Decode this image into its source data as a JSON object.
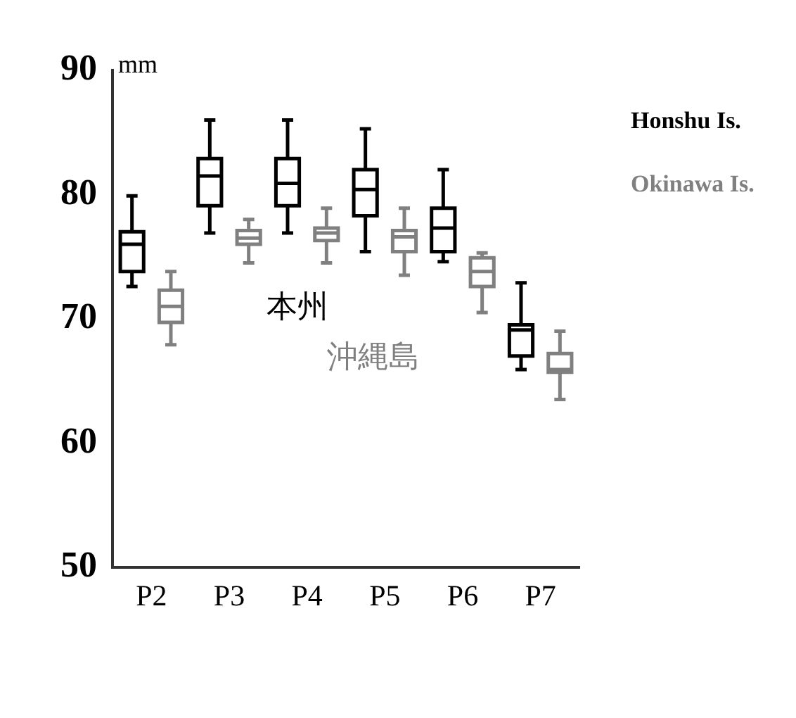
{
  "chart_data": {
    "type": "box",
    "ylabel": "mm",
    "categories": [
      "P2",
      "P3",
      "P4",
      "P5",
      "P6",
      "P7"
    ],
    "ylim": [
      50,
      90
    ],
    "yticks": [
      50,
      60,
      70,
      80,
      90
    ],
    "grid": false,
    "legend": "top right",
    "series": [
      {
        "name": "Honshu Is.",
        "color": "#000000",
        "boxes": [
          {
            "low": 72.6,
            "q1": 73.8,
            "median": 76.0,
            "q3": 77.0,
            "high": 79.9
          },
          {
            "low": 76.9,
            "q1": 79.1,
            "median": 81.5,
            "q3": 82.9,
            "high": 86.0
          },
          {
            "low": 76.9,
            "q1": 79.1,
            "median": 80.9,
            "q3": 82.9,
            "high": 86.0
          },
          {
            "low": 75.4,
            "q1": 78.3,
            "median": 80.4,
            "q3": 82.0,
            "high": 85.3
          },
          {
            "low": 74.6,
            "q1": 75.4,
            "median": 77.3,
            "q3": 78.9,
            "high": 82.0
          },
          {
            "low": 65.9,
            "q1": 67.0,
            "median": 69.1,
            "q3": 69.5,
            "high": 72.9
          }
        ]
      },
      {
        "name": "Okinawa Is.",
        "color": "#808080",
        "boxes": [
          {
            "low": 67.9,
            "q1": 69.7,
            "median": 71.0,
            "q3": 72.3,
            "high": 73.8
          },
          {
            "low": 74.5,
            "q1": 76.0,
            "median": 76.5,
            "q3": 77.1,
            "high": 78.0
          },
          {
            "low": 74.5,
            "q1": 76.3,
            "median": 76.9,
            "q3": 77.3,
            "high": 78.9
          },
          {
            "low": 73.5,
            "q1": 75.4,
            "median": 76.6,
            "q3": 77.1,
            "high": 78.9
          },
          {
            "low": 70.5,
            "q1": 72.6,
            "median": 73.8,
            "q3": 74.9,
            "high": 75.3
          },
          {
            "low": 63.5,
            "q1": 65.7,
            "median": 65.9,
            "q3": 67.2,
            "high": 69.0
          }
        ]
      }
    ],
    "annotations": [
      "本州",
      "沖縄島"
    ]
  }
}
